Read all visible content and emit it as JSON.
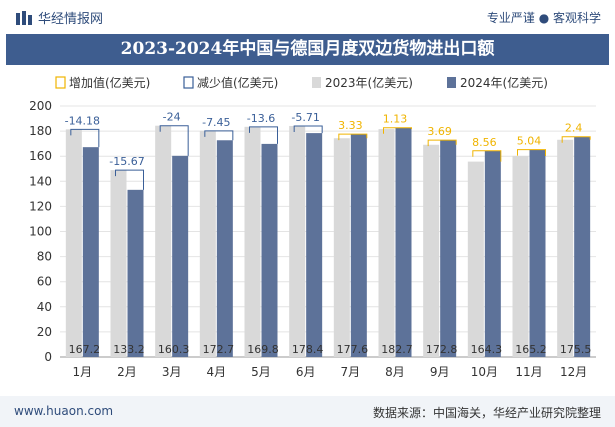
{
  "header": {
    "brand": "华经情报网",
    "tagline": "专业严谨 ● 客观科学"
  },
  "footer": {
    "website": "www.huaon.com",
    "source": "数据来源：中国海关，华经产业研究院整理"
  },
  "colors": {
    "bar_2023": "#d9d9d9",
    "bar_2024": "#5d7299",
    "increase": "#f0b400",
    "decrease": "#3a5f98",
    "title_bg": "#3e5d8f"
  },
  "chart_data": {
    "type": "bar",
    "title": "2023-2024年中国与德国月度双边货物进出口额",
    "categories": [
      "1月",
      "2月",
      "3月",
      "4月",
      "5月",
      "6月",
      "7月",
      "8月",
      "9月",
      "10月",
      "11月",
      "12月"
    ],
    "series": [
      {
        "name": "2023年(亿美元)",
        "values": [
          181.4,
          148.9,
          184.3,
          180.2,
          183.4,
          184.1,
          174.3,
          181.6,
          169.1,
          155.7,
          160.2,
          173.1
        ]
      },
      {
        "name": "2024年(亿美元)",
        "values": [
          167.2,
          133.2,
          160.3,
          172.7,
          169.8,
          178.4,
          177.6,
          182.7,
          172.8,
          164.3,
          165.2,
          175.5
        ]
      }
    ],
    "change": {
      "increase_label": "增加值(亿美元)",
      "decrease_label": "减少值(亿美元)",
      "values": [
        -14.18,
        -15.67,
        -24,
        -7.45,
        -13.6,
        -5.71,
        3.33,
        1.13,
        3.69,
        8.56,
        5.04,
        2.4
      ]
    },
    "ylim": [
      0,
      200
    ],
    "yticks": [
      0,
      20,
      40,
      60,
      80,
      100,
      120,
      140,
      160,
      180,
      200
    ],
    "grid": true,
    "legend_position": "top"
  }
}
